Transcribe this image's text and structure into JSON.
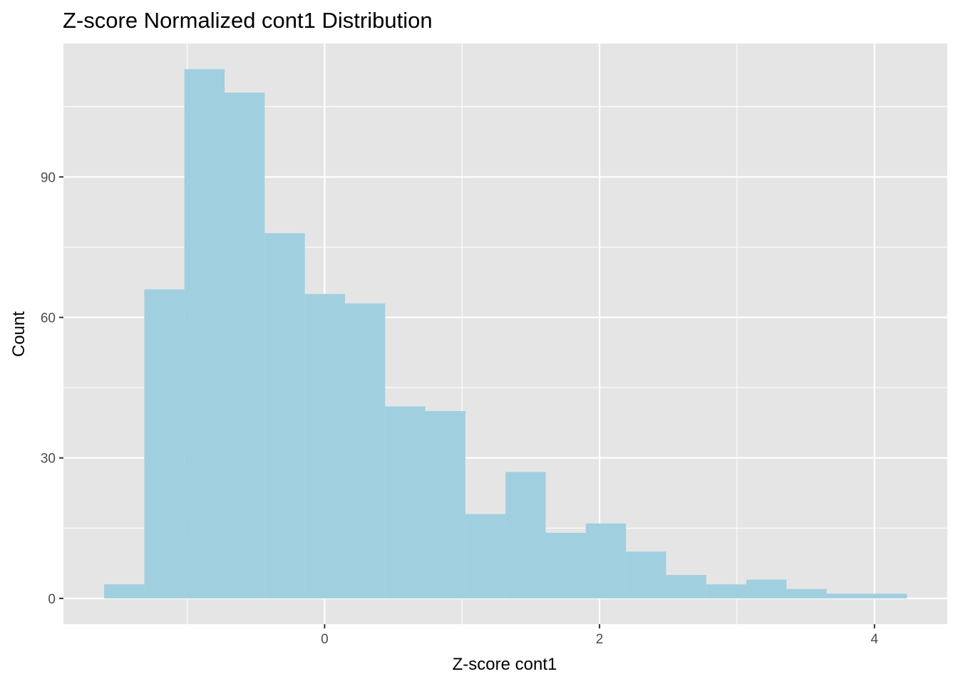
{
  "chart_data": {
    "type": "bar",
    "title": "Z-score Normalized cont1 Distribution",
    "xlabel": "Z-score cont1",
    "ylabel": "Count",
    "bin_width": 0.292,
    "bins": [
      {
        "start": -1.604,
        "end": -1.312,
        "count": 3
      },
      {
        "start": -1.312,
        "end": -1.02,
        "count": 66
      },
      {
        "start": -1.02,
        "end": -0.728,
        "count": 113
      },
      {
        "start": -0.728,
        "end": -0.436,
        "count": 108
      },
      {
        "start": -0.436,
        "end": -0.144,
        "count": 78
      },
      {
        "start": -0.144,
        "end": 0.148,
        "count": 65
      },
      {
        "start": 0.148,
        "end": 0.44,
        "count": 63
      },
      {
        "start": 0.44,
        "end": 0.732,
        "count": 41
      },
      {
        "start": 0.732,
        "end": 1.024,
        "count": 40
      },
      {
        "start": 1.024,
        "end": 1.316,
        "count": 18
      },
      {
        "start": 1.316,
        "end": 1.608,
        "count": 27
      },
      {
        "start": 1.608,
        "end": 1.9,
        "count": 14
      },
      {
        "start": 1.9,
        "end": 2.192,
        "count": 16
      },
      {
        "start": 2.192,
        "end": 2.484,
        "count": 10
      },
      {
        "start": 2.484,
        "end": 2.776,
        "count": 5
      },
      {
        "start": 2.776,
        "end": 3.068,
        "count": 3
      },
      {
        "start": 3.068,
        "end": 3.36,
        "count": 4
      },
      {
        "start": 3.36,
        "end": 3.652,
        "count": 2
      },
      {
        "start": 3.652,
        "end": 3.944,
        "count": 1
      },
      {
        "start": 3.944,
        "end": 4.236,
        "count": 1
      }
    ],
    "xlim": [
      -1.9,
      4.53
    ],
    "ylim": [
      -5.5,
      118.5
    ],
    "x_ticks": [
      0,
      2,
      4
    ],
    "x_tick_labels": [
      "0",
      "2",
      "4"
    ],
    "x_minor_ticks": [
      -1,
      1,
      3
    ],
    "y_ticks": [
      0,
      30,
      60,
      90
    ],
    "y_tick_labels": [
      "0",
      "30",
      "60",
      "90"
    ],
    "y_minor_ticks": [
      15,
      45,
      75,
      105
    ],
    "grid": true,
    "legend": "none",
    "colors": {
      "bar_fill": "#a0cfe0",
      "panel_background": "#e5e5e5",
      "grid_line": "#ffffff",
      "tick_mark": "#333333"
    }
  }
}
